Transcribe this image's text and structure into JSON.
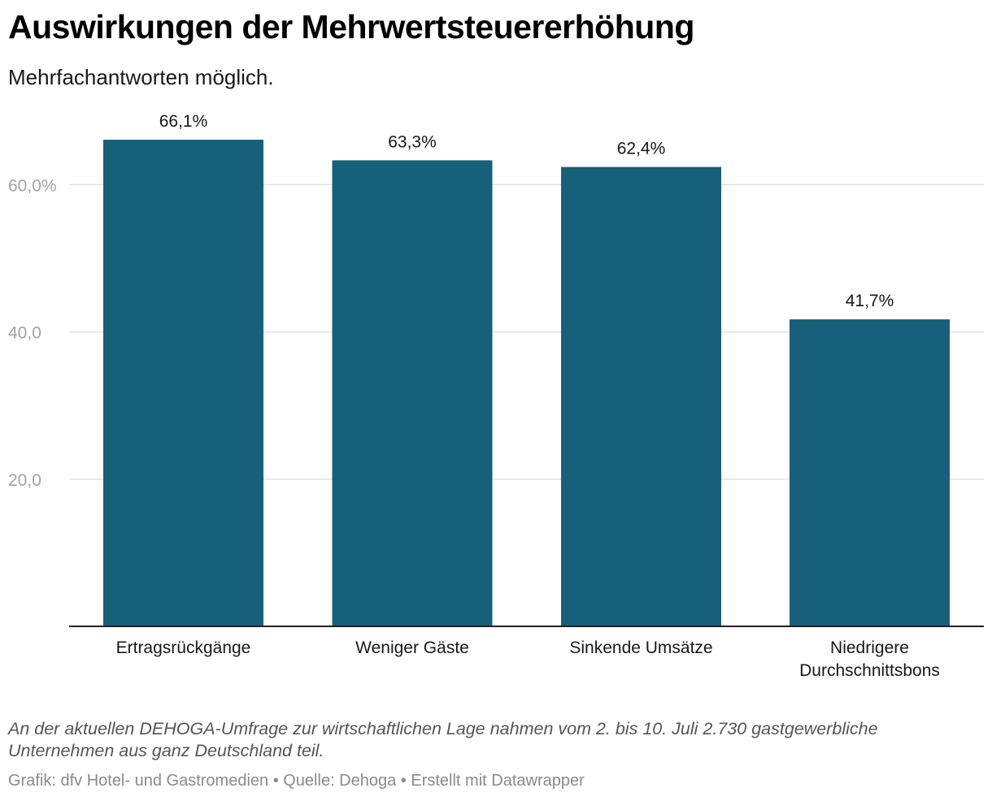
{
  "header": {
    "title": "Auswirkungen der Mehrwertsteuererhöhung",
    "subtitle": "Mehrfachantworten möglich."
  },
  "chart_data": {
    "type": "bar",
    "categories": [
      [
        "Ertragsrückgänge"
      ],
      [
        "Weniger Gäste"
      ],
      [
        "Sinkende Umsätze"
      ],
      [
        "Niedrigere",
        "Durchschnittsbons"
      ]
    ],
    "values": [
      66.1,
      63.3,
      62.4,
      41.7
    ],
    "value_labels": [
      "66,1%",
      "63,3%",
      "62,4%",
      "41,7%"
    ],
    "y_ticks": [
      {
        "value": 20,
        "label": "20,0"
      },
      {
        "value": 40,
        "label": "40,0"
      },
      {
        "value": 60,
        "label": "60,0%"
      }
    ],
    "ylim": [
      0,
      66.1
    ],
    "grid": true,
    "bar_color": "#17607a",
    "grid_color": "#e2e2e2",
    "axis_color": "#222222",
    "tick_label_color": "#a3a3a3"
  },
  "notes": {
    "text": "An der aktuellen DEHOGA-Umfrage zur wirtschaftlichen Lage nahmen vom 2. bis 10. Juli 2.730 gastgewerbliche Unternehmen aus ganz Deutschland teil.",
    "credits": "Grafik: dfv Hotel- und Gastromedien • Quelle: Dehoga • Erstellt mit Datawrapper"
  }
}
